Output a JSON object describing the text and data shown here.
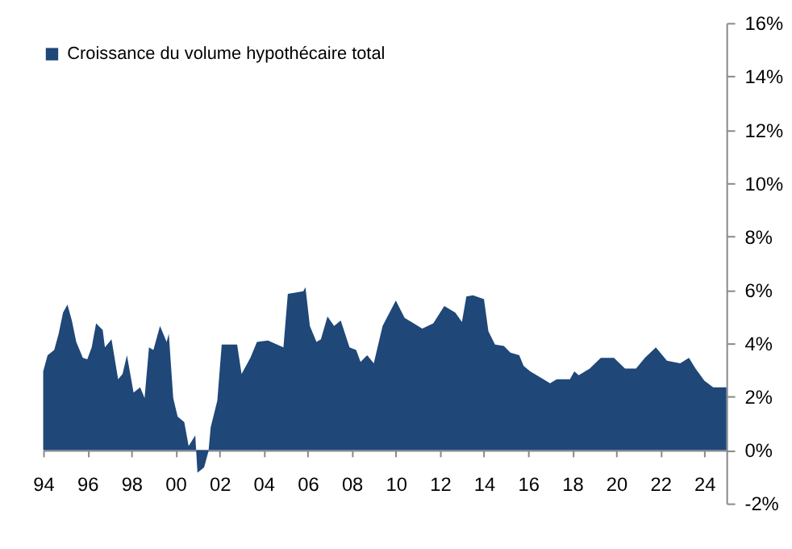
{
  "chart_data": {
    "type": "area",
    "x": [
      1994.0,
      1994.2,
      1994.5,
      1994.7,
      1994.9,
      1995.1,
      1995.3,
      1995.5,
      1995.8,
      1996.0,
      1996.2,
      1996.4,
      1996.7,
      1996.8,
      1997.1,
      1997.4,
      1997.6,
      1997.8,
      1998.1,
      1998.4,
      1998.6,
      1998.8,
      1999.0,
      1999.3,
      1999.6,
      1999.7,
      1999.9,
      2000.1,
      2000.4,
      2000.6,
      2000.9,
      2001.0,
      2001.3,
      2001.5,
      2001.6,
      2001.9,
      2002.1,
      2002.8,
      2003.0,
      2003.4,
      2003.7,
      2004.2,
      2004.9,
      2005.1,
      2005.8,
      2005.9,
      2006.1,
      2006.4,
      2006.6,
      2006.9,
      2007.2,
      2007.5,
      2007.9,
      2008.2,
      2008.4,
      2008.7,
      2009.0,
      2009.4,
      2010.0,
      2010.4,
      2011.2,
      2011.7,
      2012.2,
      2012.7,
      2013.0,
      2013.2,
      2013.5,
      2014.0,
      2014.2,
      2014.5,
      2014.9,
      2015.2,
      2015.6,
      2015.8,
      2016.1,
      2016.5,
      2017.0,
      2017.3,
      2017.9,
      2018.1,
      2018.3,
      2018.8,
      2019.3,
      2019.9,
      2020.4,
      2020.9,
      2021.3,
      2021.8,
      2022.3,
      2022.9,
      2023.3,
      2023.6,
      2024.0,
      2024.4,
      2025.0
    ],
    "series": [
      {
        "name": "Croissance du volume hypothécaire total",
        "color": "#1f4778",
        "values": [
          2.95,
          3.55,
          3.75,
          4.35,
          5.15,
          5.45,
          4.85,
          4.05,
          3.45,
          3.4,
          3.85,
          4.75,
          4.5,
          3.85,
          4.15,
          2.65,
          2.85,
          3.55,
          2.15,
          2.35,
          1.95,
          3.85,
          3.75,
          4.65,
          4.05,
          4.35,
          1.95,
          1.25,
          1.05,
          0.15,
          0.55,
          -0.85,
          -0.65,
          -0.05,
          0.85,
          1.85,
          3.95,
          3.95,
          2.85,
          3.45,
          4.05,
          4.1,
          3.85,
          5.85,
          5.95,
          6.1,
          4.65,
          4.05,
          4.15,
          5.0,
          4.65,
          4.85,
          3.85,
          3.75,
          3.3,
          3.55,
          3.25,
          4.65,
          5.6,
          4.95,
          4.55,
          4.75,
          5.4,
          5.15,
          4.8,
          5.75,
          5.8,
          5.65,
          4.45,
          3.95,
          3.9,
          3.65,
          3.55,
          3.15,
          2.95,
          2.75,
          2.5,
          2.65,
          2.65,
          2.95,
          2.8,
          3.05,
          3.45,
          3.45,
          3.05,
          3.05,
          3.45,
          3.85,
          3.35,
          3.25,
          3.45,
          3.05,
          2.6,
          2.35,
          2.35
        ]
      }
    ],
    "xlim": [
      1994,
      2025
    ],
    "xticks": [
      {
        "value": 1994,
        "label": "94"
      },
      {
        "value": 1996,
        "label": "96"
      },
      {
        "value": 1998,
        "label": "98"
      },
      {
        "value": 2000,
        "label": "00"
      },
      {
        "value": 2002,
        "label": "02"
      },
      {
        "value": 2004,
        "label": "04"
      },
      {
        "value": 2006,
        "label": "06"
      },
      {
        "value": 2008,
        "label": "08"
      },
      {
        "value": 2010,
        "label": "10"
      },
      {
        "value": 2012,
        "label": "12"
      },
      {
        "value": 2014,
        "label": "14"
      },
      {
        "value": 2016,
        "label": "16"
      },
      {
        "value": 2018,
        "label": "18"
      },
      {
        "value": 2020,
        "label": "20"
      },
      {
        "value": 2022,
        "label": "22"
      },
      {
        "value": 2024,
        "label": "24"
      }
    ],
    "ylim": [
      -2,
      16
    ],
    "yticks": [
      {
        "value": -2,
        "label": "-2%"
      },
      {
        "value": 0,
        "label": "0%"
      },
      {
        "value": 2,
        "label": "2%"
      },
      {
        "value": 4,
        "label": "4%"
      },
      {
        "value": 6,
        "label": "6%"
      },
      {
        "value": 8,
        "label": "8%"
      },
      {
        "value": 10,
        "label": "10%"
      },
      {
        "value": 12,
        "label": "12%"
      },
      {
        "value": 14,
        "label": "14%"
      },
      {
        "value": 16,
        "label": "16%"
      }
    ],
    "grid": false,
    "legend": "top"
  }
}
